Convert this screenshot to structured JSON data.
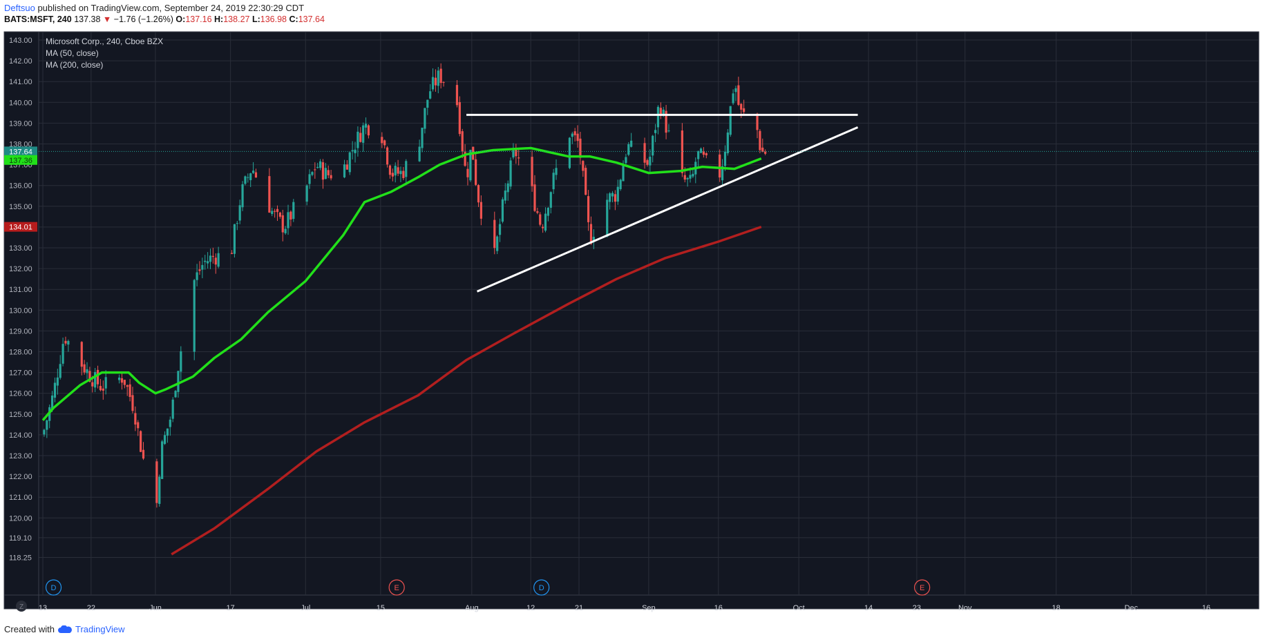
{
  "header": {
    "author": "Deftsuo",
    "published": "published on TradingView.com, September 24, 2019 22:30:29 CDT",
    "symbol": "BATS:MSFT, 240",
    "last": "137.38",
    "change": "−1.76 (−1.26%)",
    "o_label": "O:",
    "o": "137.16",
    "h_label": "H:",
    "h": "138.27",
    "l_label": "L:",
    "l": "136.98",
    "c_label": "C:",
    "c": "137.64"
  },
  "legend": {
    "title": "Microsoft Corp., 240, Cboe BZX",
    "ma50": "MA (50, close)",
    "ma200": "MA (200, close)"
  },
  "footer": {
    "created_with": "Created with",
    "brand": "TradingView"
  },
  "colors": {
    "background": "#131722",
    "grid": "#2a2e39",
    "up": "#26a69a",
    "down": "#ef5350",
    "ma50": "#22e01a",
    "ma200": "#b21f1f",
    "trendline": "#ffffff"
  },
  "chart_data": {
    "type": "candlestick",
    "y_ticks": [
      "143.00",
      "142.00",
      "141.00",
      "140.00",
      "139.00",
      "138.00",
      "137.00",
      "136.00",
      "135.00",
      "134.00",
      "133.00",
      "132.00",
      "131.00",
      "130.00",
      "129.00",
      "128.00",
      "127.00",
      "126.00",
      "125.00",
      "124.00",
      "123.00",
      "122.00",
      "121.00",
      "120.00",
      "119.10",
      "118.25"
    ],
    "x_ticks": [
      "13",
      "22",
      "Jun",
      "17",
      "Jul",
      "15",
      "Aug",
      "12",
      "21",
      "Sep",
      "16",
      "Oct",
      "14",
      "23",
      "Nov",
      "18",
      "Dec",
      "16"
    ],
    "price_labels": {
      "last": "137.64",
      "ma50": "137.36",
      "ma200": "134.01"
    },
    "events": [
      {
        "label": "D",
        "date": "May 15"
      },
      {
        "label": "E",
        "date": "Jul 18"
      },
      {
        "label": "D",
        "date": "Aug 14"
      },
      {
        "label": "E",
        "date": "Oct 24"
      }
    ],
    "close_path": [
      [
        "May 13",
        124.0
      ],
      [
        "May 15",
        126.0
      ],
      [
        "May 17",
        128.8
      ],
      [
        "May 20",
        127.5
      ],
      [
        "May 22",
        126.8
      ],
      [
        "May 24",
        126.3
      ],
      [
        "May 28",
        126.8
      ],
      [
        "May 30",
        125.3
      ],
      [
        "May 31",
        123.8
      ],
      [
        "Jun 3",
        119.9
      ],
      [
        "Jun 4",
        123.2
      ],
      [
        "Jun 6",
        125.0
      ],
      [
        "Jun 7",
        127.0
      ],
      [
        "Jun 10",
        131.3
      ],
      [
        "Jun 12",
        132.3
      ],
      [
        "Jun 14",
        132.6
      ],
      [
        "Jun 17",
        132.6
      ],
      [
        "Jun 19",
        135.6
      ],
      [
        "Jun 21",
        136.9
      ],
      [
        "Jun 25",
        134.6
      ],
      [
        "Jun 27",
        134.0
      ],
      [
        "Jul 1",
        135.8
      ],
      [
        "Jul 3",
        137.0
      ],
      [
        "Jul 5",
        136.5
      ],
      [
        "Jul 8",
        136.8
      ],
      [
        "Jul 10",
        137.9
      ],
      [
        "Jul 12",
        138.9
      ],
      [
        "Jul 15",
        138.7
      ],
      [
        "Jul 17",
        136.6
      ],
      [
        "Jul 19",
        136.6
      ],
      [
        "Jul 22",
        137.9
      ],
      [
        "Jul 24",
        140.5
      ],
      [
        "Jul 26",
        141.3
      ],
      [
        "Jul 29",
        140.5
      ],
      [
        "Jul 31",
        136.3
      ],
      [
        "Aug 1",
        138.0
      ],
      [
        "Aug 2",
        135.7
      ],
      [
        "Aug 5",
        132.2
      ],
      [
        "Aug 7",
        135.3
      ],
      [
        "Aug 9",
        137.7
      ],
      [
        "Aug 12",
        135.9
      ],
      [
        "Aug 14",
        134.0
      ],
      [
        "Aug 16",
        136.1
      ],
      [
        "Aug 19",
        138.6
      ],
      [
        "Aug 21",
        138.0
      ],
      [
        "Aug 23",
        133.4
      ],
      [
        "Aug 26",
        135.3
      ],
      [
        "Aug 28",
        135.6
      ],
      [
        "Aug 30",
        137.9
      ],
      [
        "Sep 3",
        137.0
      ],
      [
        "Sep 5",
        140.0
      ],
      [
        "Sep 6",
        139.1
      ],
      [
        "Sep 9",
        136.3
      ],
      [
        "Sep 11",
        136.1
      ],
      [
        "Sep 12",
        137.5
      ],
      [
        "Sep 13",
        137.3
      ],
      [
        "Sep 16",
        136.3
      ],
      [
        "Sep 17",
        137.4
      ],
      [
        "Sep 19",
        141.1
      ],
      [
        "Sep 20",
        139.5
      ],
      [
        "Sep 23",
        139.0
      ],
      [
        "Sep 24",
        137.6
      ]
    ],
    "ma50_path": [
      [
        "May 13",
        124.7
      ],
      [
        "May 15",
        125.3
      ],
      [
        "May 20",
        126.4
      ],
      [
        "May 24",
        127.0
      ],
      [
        "May 29",
        127.0
      ],
      [
        "May 31",
        126.5
      ],
      [
        "Jun 3",
        126.0
      ],
      [
        "Jun 5",
        126.2
      ],
      [
        "Jun 10",
        126.8
      ],
      [
        "Jun 14",
        127.7
      ],
      [
        "Jun 19",
        128.6
      ],
      [
        "Jun 24",
        129.9
      ],
      [
        "Jul 1",
        131.4
      ],
      [
        "Jul 8",
        133.6
      ],
      [
        "Jul 12",
        135.2
      ],
      [
        "Jul 17",
        135.7
      ],
      [
        "Jul 22",
        136.4
      ],
      [
        "Jul 26",
        137.0
      ],
      [
        "Jul 31",
        137.5
      ],
      [
        "Aug 5",
        137.7
      ],
      [
        "Aug 12",
        137.8
      ],
      [
        "Aug 19",
        137.4
      ],
      [
        "Aug 23",
        137.4
      ],
      [
        "Aug 28",
        137.1
      ],
      [
        "Sep 3",
        136.6
      ],
      [
        "Sep 9",
        136.7
      ],
      [
        "Sep 13",
        136.9
      ],
      [
        "Sep 19",
        136.8
      ],
      [
        "Sep 24",
        137.3
      ]
    ],
    "ma200_path": [
      [
        "Jun 6",
        118.25
      ],
      [
        "Jun 14",
        119.5
      ],
      [
        "Jun 24",
        121.4
      ],
      [
        "Jul 3",
        123.2
      ],
      [
        "Jul 12",
        124.6
      ],
      [
        "Jul 22",
        125.9
      ],
      [
        "Jul 31",
        127.6
      ],
      [
        "Aug 9",
        128.9
      ],
      [
        "Aug 19",
        130.3
      ],
      [
        "Aug 28",
        131.5
      ],
      [
        "Sep 6",
        132.5
      ],
      [
        "Sep 16",
        133.3
      ],
      [
        "Sep 24",
        134.01
      ]
    ],
    "horizontal_line": {
      "from": "Jul 31",
      "to": "Oct 12",
      "y": 139.4
    },
    "rising_line": {
      "from": [
        "Aug 2",
        130.9
      ],
      "to": [
        "Oct 12",
        138.8
      ]
    }
  }
}
